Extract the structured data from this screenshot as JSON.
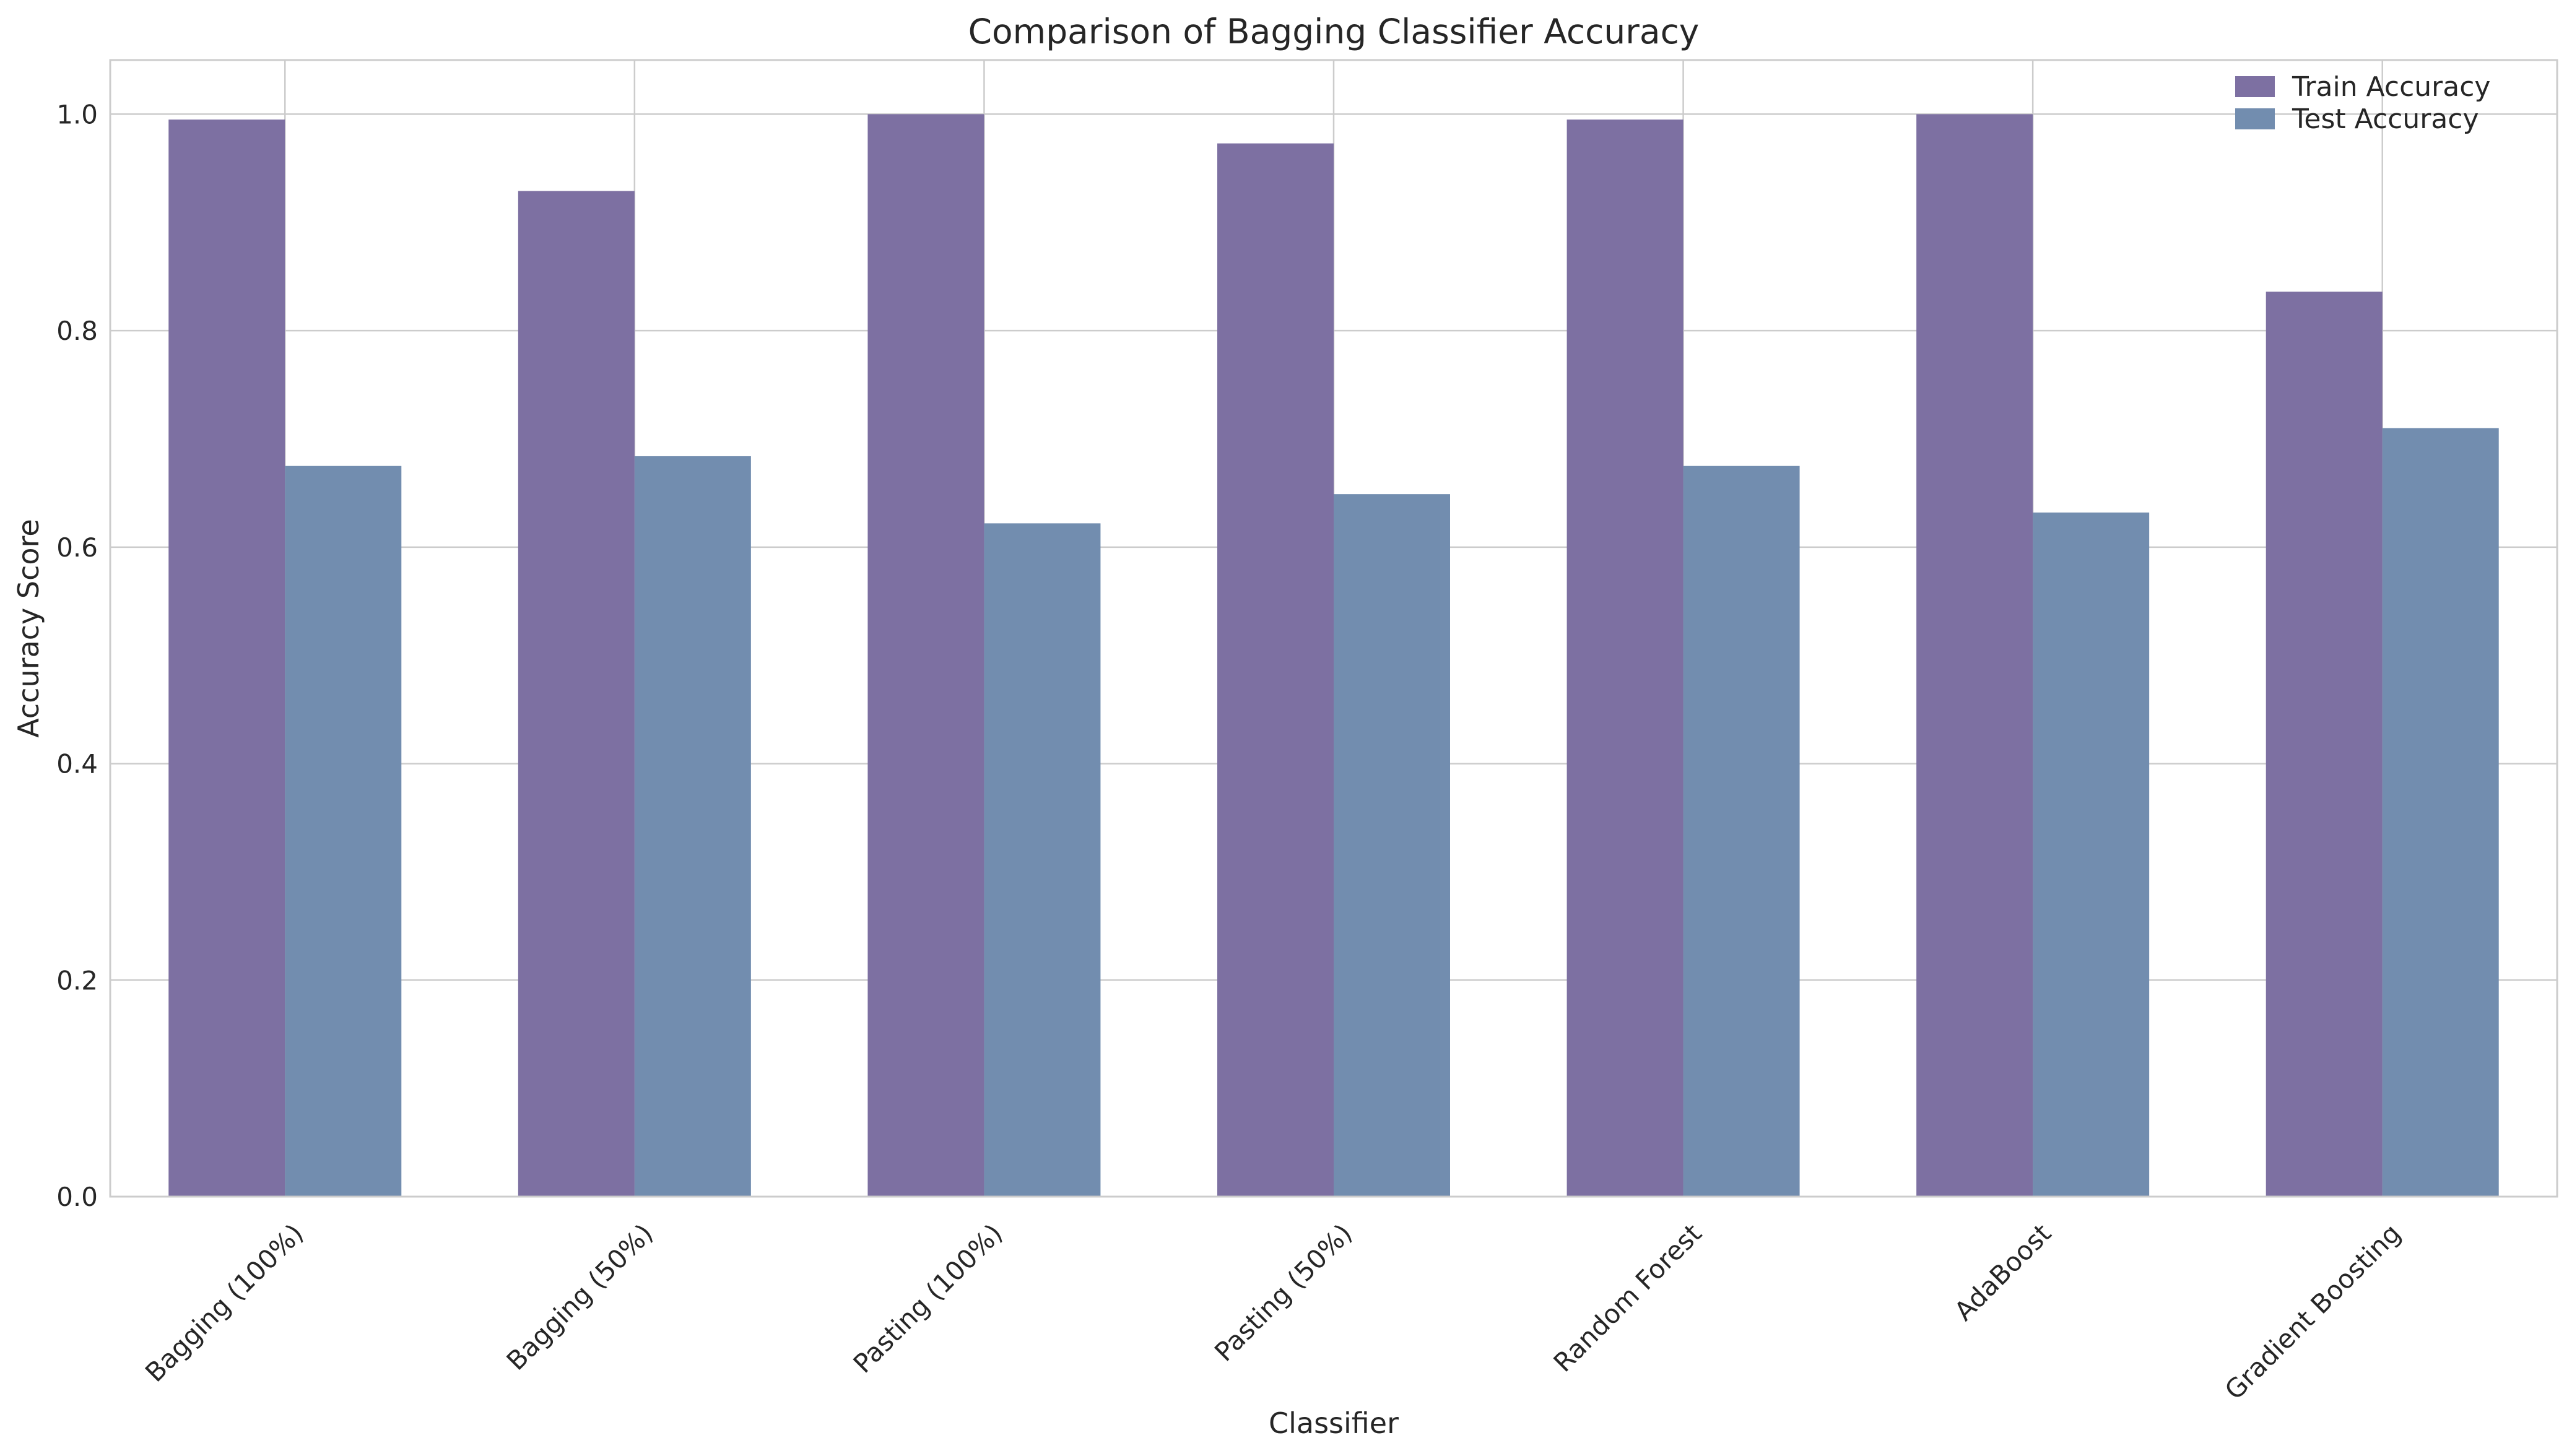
{
  "chart_data": {
    "type": "bar",
    "title": "Comparison of Bagging Classifier Accuracy",
    "xlabel": "Classifier",
    "ylabel": "Accuracy Score",
    "categories": [
      "Bagging (100%)",
      "Bagging (50%)",
      "Pasting (100%)",
      "Pasting (50%)",
      "Random Forest",
      "AdaBoost",
      "Gradient Boosting"
    ],
    "series": [
      {
        "name": "Train Accuracy",
        "color": "#7d70a2",
        "values": [
          0.995,
          0.929,
          1.0,
          0.973,
          0.995,
          1.0,
          0.836
        ]
      },
      {
        "name": "Test Accuracy",
        "color": "#728daf",
        "values": [
          0.675,
          0.684,
          0.622,
          0.649,
          0.675,
          0.632,
          0.71
        ]
      }
    ],
    "ylim": [
      0,
      1.05
    ],
    "yticks": [
      0.0,
      0.2,
      0.4,
      0.6,
      0.8,
      1.0
    ],
    "ytick_labels": [
      "0.0",
      "0.2",
      "0.4",
      "0.6",
      "0.8",
      "1.0"
    ],
    "grid": true,
    "legend_position": "top-right"
  }
}
